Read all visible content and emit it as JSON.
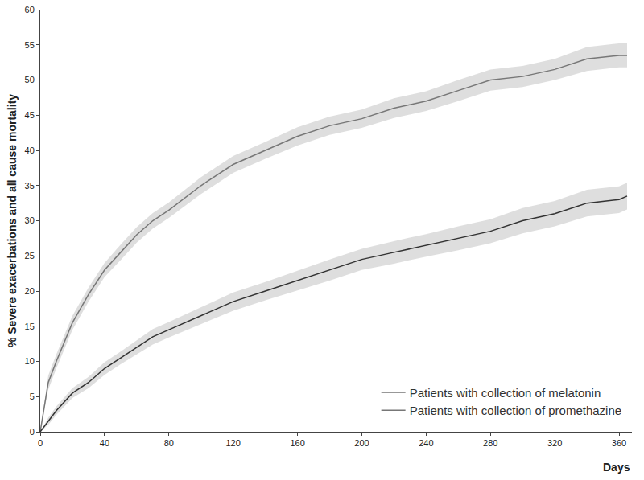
{
  "chart_data": {
    "type": "line",
    "x_label": "Days",
    "y_label": "% Severe exacerbations and all cause mortality",
    "x": [
      0,
      5,
      10,
      20,
      30,
      40,
      50,
      60,
      70,
      80,
      100,
      120,
      140,
      160,
      180,
      200,
      220,
      240,
      260,
      280,
      300,
      320,
      340,
      360,
      365
    ],
    "series": [
      {
        "name": "Patients with collection of promethazine",
        "color": "#777777",
        "values": [
          0,
          7,
          10,
          15.5,
          19.5,
          23,
          25.5,
          28,
          30,
          31.5,
          35,
          38,
          40,
          42,
          43.5,
          44.5,
          46,
          47,
          48.5,
          50,
          50.5,
          51.5,
          53,
          53.5,
          53.5
        ],
        "lower": [
          0,
          6,
          9,
          14.5,
          18.5,
          22,
          24.4,
          26.9,
          28.9,
          30.4,
          33.8,
          36.8,
          38.8,
          40.7,
          42.2,
          43.2,
          44.6,
          45.6,
          47,
          48.5,
          49,
          50,
          51.3,
          51.8,
          51.8
        ],
        "upper": [
          0,
          8,
          11,
          16.5,
          20.5,
          24,
          26.6,
          29.1,
          31.1,
          32.6,
          36.2,
          39.2,
          41.2,
          43.3,
          44.8,
          45.8,
          47.4,
          48.4,
          50,
          51.5,
          52,
          53,
          54.7,
          55.2,
          55.2
        ]
      },
      {
        "name": "Patients with collection of melatonin",
        "color": "#333333",
        "values": [
          0,
          1.5,
          3,
          5.5,
          7,
          9,
          10.5,
          12,
          13.5,
          14.5,
          16.5,
          18.5,
          20,
          21.5,
          23,
          24.5,
          25.5,
          26.5,
          27.5,
          28.5,
          30,
          31,
          32.5,
          33,
          33.5
        ],
        "lower": [
          0,
          1,
          2.4,
          4.8,
          6.2,
          8.1,
          9.6,
          11,
          12.4,
          13.4,
          15.3,
          17.2,
          18.7,
          20.1,
          21.5,
          23,
          23.9,
          24.9,
          25.8,
          26.8,
          28.2,
          29.2,
          30.6,
          31.1,
          31.6
        ],
        "upper": [
          0,
          2,
          3.6,
          6.2,
          7.8,
          9.9,
          11.4,
          13,
          14.6,
          15.6,
          17.7,
          19.8,
          21.3,
          22.9,
          24.5,
          26,
          27.1,
          28.1,
          29.2,
          30.2,
          31.8,
          32.8,
          34.4,
          34.9,
          35.4
        ]
      }
    ],
    "xlim": [
      0,
      368
    ],
    "xticks": [
      0,
      40,
      80,
      120,
      160,
      200,
      240,
      280,
      320,
      360
    ],
    "ylim": [
      0,
      60
    ],
    "yticks": [
      0,
      5,
      10,
      15,
      20,
      25,
      30,
      35,
      40,
      45,
      50,
      55,
      60
    ],
    "grid": false,
    "legend": "lower right"
  }
}
